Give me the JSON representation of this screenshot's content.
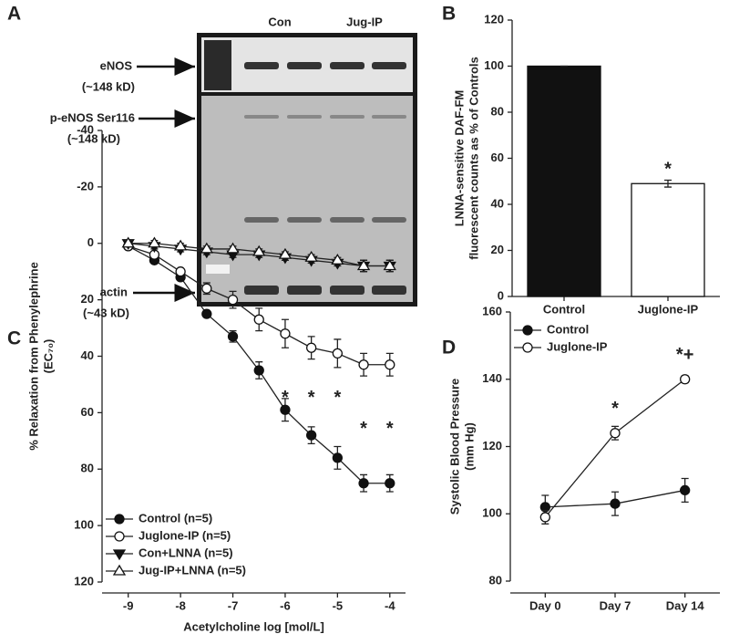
{
  "blot": {
    "panel_label": "A",
    "lane_groups": [
      "Con",
      "Jug-IP"
    ],
    "bands": [
      {
        "name": "eNOS",
        "size": "(~148 kD)"
      },
      {
        "name": "p-eNOS Ser116",
        "size": "(~148 kD)"
      },
      {
        "name": "actin",
        "size": "(~43 kD)"
      }
    ]
  },
  "chart_data": [
    {
      "type": "bar",
      "panel_label": "B",
      "ylabel": [
        "LNNA-sensitive DAF-FM",
        "fluorescent counts as % of Controls"
      ],
      "categories": [
        "Control",
        "Juglone-IP"
      ],
      "values": [
        100,
        49
      ],
      "errors": [
        0,
        1.5
      ],
      "colors": [
        "#111111",
        "#ffffff"
      ],
      "ylim": [
        0,
        120
      ],
      "yticks": [
        0,
        20,
        40,
        60,
        80,
        100,
        120
      ],
      "annotations": [
        {
          "text": "*",
          "x": "Juglone-IP",
          "y": 55
        }
      ]
    },
    {
      "type": "line",
      "panel_label": "C",
      "xlabel": "Acetylcholine log [mol/L]",
      "ylabel": [
        "% Relaxation from Phenylephrine",
        "(EC₇₀)"
      ],
      "y_inverted": true,
      "legend": "lower left",
      "x": [
        -9,
        -8.5,
        -8,
        -7.5,
        -7,
        -6.5,
        -6,
        -5.5,
        -5,
        -4.5,
        -4
      ],
      "xlim": [
        -9.5,
        -3.7
      ],
      "xticks": [
        -9,
        -8,
        -7,
        -6,
        -5,
        -4
      ],
      "ylim": [
        -40,
        120
      ],
      "yticks": [
        -40,
        -20,
        0,
        20,
        40,
        60,
        80,
        100,
        120
      ],
      "series": [
        {
          "name": "Control (n=5)",
          "marker": "circle",
          "filled": true,
          "values": [
            1,
            6,
            12,
            25,
            33,
            45,
            59,
            68,
            76,
            85,
            85
          ],
          "errors": [
            1,
            1,
            1,
            1,
            2,
            3,
            4,
            3,
            4,
            3,
            3
          ]
        },
        {
          "name": "Juglone-IP (n=5)",
          "marker": "circle",
          "filled": false,
          "values": [
            1,
            4,
            10,
            16,
            20,
            27,
            32,
            37,
            39,
            43,
            43
          ],
          "errors": [
            1,
            1,
            1,
            2,
            3,
            4,
            5,
            4,
            5,
            4,
            4
          ]
        },
        {
          "name": "Con+LNNA (n=5)",
          "marker": "triangle-down",
          "filled": true,
          "values": [
            0,
            1,
            2,
            3,
            4,
            4,
            5,
            6,
            7,
            8,
            8
          ],
          "errors": [
            1,
            1,
            1,
            1,
            1,
            1,
            1,
            1,
            1,
            2,
            2
          ]
        },
        {
          "name": "Jug-IP+LNNA (n=5)",
          "marker": "triangle-up",
          "filled": false,
          "values": [
            0,
            0,
            1,
            2,
            2,
            3,
            4,
            5,
            6,
            8,
            8
          ],
          "errors": [
            1,
            1,
            1,
            1,
            1,
            1,
            1,
            1,
            1,
            2,
            2
          ]
        }
      ],
      "annotations": [
        {
          "text": "*",
          "x": -6,
          "y": 55
        },
        {
          "text": "*",
          "x": -5.5,
          "y": 55
        },
        {
          "text": "*",
          "x": -5,
          "y": 55
        },
        {
          "text": "*",
          "x": -4.5,
          "y": 66
        },
        {
          "text": "*",
          "x": -4,
          "y": 66
        }
      ]
    },
    {
      "type": "line",
      "panel_label": "D",
      "ylabel": [
        "Systolic Blood Pressure",
        "(mm Hg)"
      ],
      "legend": "upper left",
      "categories": [
        "Day 0",
        "Day 7",
        "Day 14"
      ],
      "ylim": [
        80,
        160
      ],
      "yticks": [
        80,
        100,
        120,
        140,
        160
      ],
      "series": [
        {
          "name": "Control",
          "marker": "circle",
          "filled": true,
          "values": [
            102,
            103,
            107
          ],
          "errors": [
            3.5,
            3.5,
            3.5
          ]
        },
        {
          "name": "Juglone-IP",
          "marker": "circle",
          "filled": false,
          "values": [
            99,
            124,
            140
          ],
          "errors": [
            2,
            2,
            1
          ]
        }
      ],
      "annotations": [
        {
          "text": "*",
          "x": "Day 7",
          "y": 131
        },
        {
          "text": "*+",
          "x": "Day 14",
          "y": 147
        }
      ]
    }
  ]
}
